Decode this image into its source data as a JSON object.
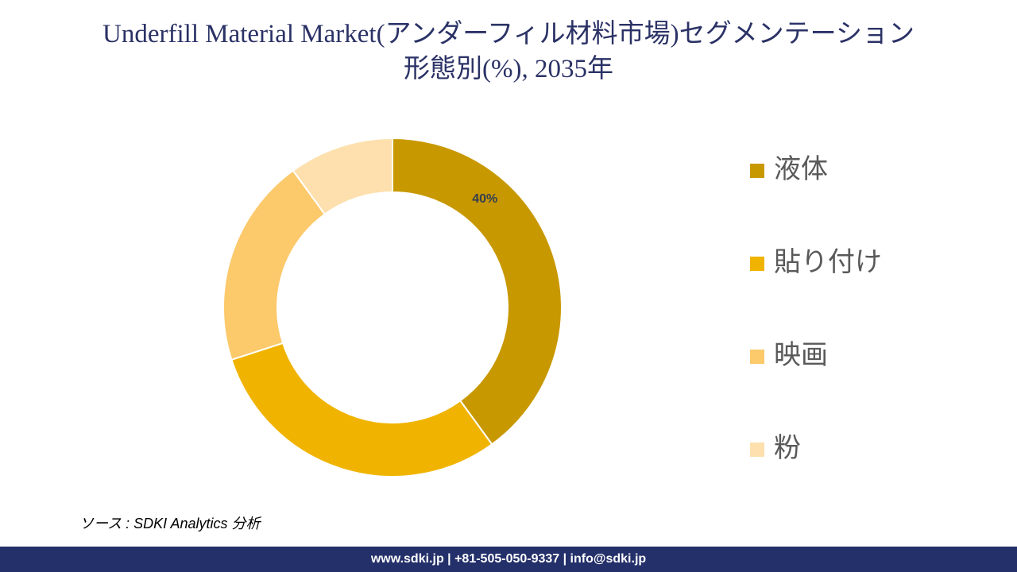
{
  "chart_data": {
    "type": "donut",
    "title": "Underfill Material Market(アンダーフィル材料市場)セグメンテーション",
    "subtitle": "形態別(%), 2035年",
    "categories": [
      "液体",
      "貼り付け",
      "映画",
      "粉"
    ],
    "values": [
      40,
      30,
      20,
      10
    ],
    "value_labels": [
      "40%",
      null,
      null,
      null
    ],
    "colors": [
      "#c89800",
      "#f0b400",
      "#fcc96b",
      "#fde0ae"
    ],
    "legend": "right",
    "source": "ソース : SDKI Analytics 分析",
    "footer": "www.sdki.jp | +81-505-050-9337 | info@sdki.jp"
  }
}
